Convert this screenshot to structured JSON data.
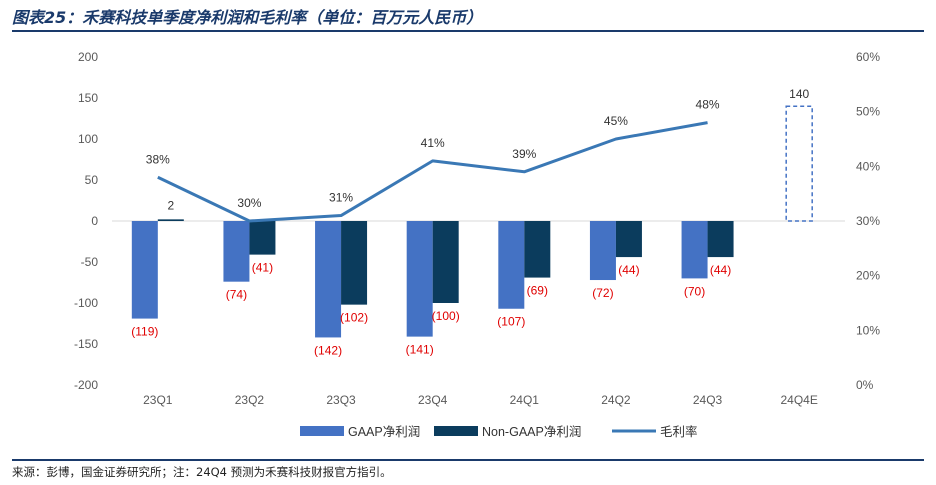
{
  "title": "图表25：禾赛科技单季度净利润和毛利率（单位：百万元人民币）",
  "source": "来源：彭博，国金证券研究所；注：24Q4 预测为禾赛科技财报官方指引。",
  "colors": {
    "gaap": "#4472c4",
    "nongaap": "#0b3c5d",
    "margin": "#3a78b5",
    "estimate": "#4472c4",
    "negLabel": "#e00000",
    "posLabel": "#333333"
  },
  "chart_data": {
    "type": "bar",
    "categories": [
      "23Q1",
      "23Q2",
      "23Q3",
      "23Q4",
      "24Q1",
      "24Q2",
      "24Q3",
      "24Q4E"
    ],
    "series": [
      {
        "name": "GAAP净利润",
        "type": "bar",
        "axis": "left",
        "values": [
          -119,
          -74,
          -142,
          -141,
          -107,
          -72,
          -70,
          140
        ],
        "labels": [
          "(119)",
          "(74)",
          "(142)",
          "(141)",
          "(107)",
          "(72)",
          "(70)",
          "140"
        ]
      },
      {
        "name": "Non-GAAP净利润",
        "type": "bar",
        "axis": "left",
        "values": [
          2,
          -41,
          -102,
          -100,
          -69,
          -44,
          -44,
          null
        ],
        "labels": [
          "2",
          "(41)",
          "(102)",
          "(100)",
          "(69)",
          "(44)",
          "(44)",
          ""
        ]
      },
      {
        "name": "毛利率",
        "type": "line",
        "axis": "right",
        "values": [
          38,
          30,
          31,
          41,
          39,
          45,
          48,
          null
        ],
        "labels": [
          "38%",
          "30%",
          "31%",
          "41%",
          "39%",
          "45%",
          "48%",
          ""
        ]
      }
    ],
    "estimate_category": "24Q4E",
    "yleft": {
      "range": [
        -200,
        200
      ],
      "ticks": [
        "200",
        "150",
        "100",
        "50",
        "0",
        "-50",
        "-100",
        "-150",
        "-200"
      ]
    },
    "yright": {
      "range": [
        0,
        60
      ],
      "ticks": [
        "60%",
        "50%",
        "40%",
        "30%",
        "20%",
        "10%",
        "0%"
      ]
    },
    "legend_position": "bottom",
    "grid": false
  }
}
